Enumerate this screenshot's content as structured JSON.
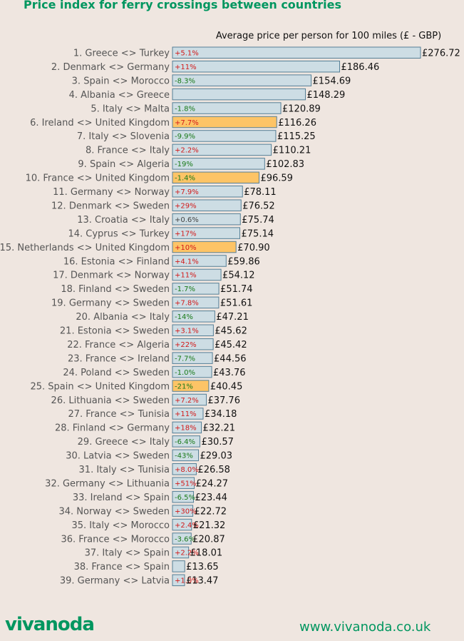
{
  "title": "Price index for ferry crossings between countries",
  "footer": {
    "logo": "vivanoda",
    "url": "www.vivanoda.co.uk"
  },
  "colors": {
    "brand": "#00965f",
    "bar": "#cddde4",
    "bar_highlight": "#fdc466",
    "bar_border": "#557f96",
    "increase": "#d21a1a",
    "decrease": "#197a19",
    "neutral": "#444444"
  },
  "chart_data": {
    "type": "bar",
    "orientation": "horizontal",
    "subtitle": "Average price per person for 100 miles (£ - GBP)",
    "value_prefix": "£",
    "xlim": [
      0,
      276.72
    ],
    "categories": [
      "1. Greece <> Turkey",
      "2. Denmark <> Germany",
      "3. Spain <> Morocco",
      "4. Albania <> Greece",
      "5. Italy <> Malta",
      "6. Ireland <> United Kingdom",
      "7. Italy <> Slovenia",
      "8. France <> Italy",
      "9. Spain <> Algeria",
      "10. France <> United Kingdom",
      "11. Germany <> Norway",
      "12. Denmark <> Sweden",
      "13. Croatia <> Italy",
      "14. Cyprus <> Turkey",
      "15. Netherlands <> United Kingdom",
      "16. Estonia <> Finland",
      "17. Denmark <> Norway",
      "18. Finland <> Sweden",
      "19. Germany <> Sweden",
      "20. Albania <> Italy",
      "21. Estonia <> Sweden",
      "22. France <> Algeria",
      "23. France <> Ireland",
      "24. Poland <> Sweden",
      "25. Spain <> United Kingdom",
      "26. Lithuania <> Sweden",
      "27. France <> Tunisia",
      "28. Finland <> Germany",
      "29. Greece <> Italy",
      "30. Latvia <> Sweden",
      "31. Italy <> Tunisia",
      "32. Germany <> Lithuania",
      "33. Ireland <> Spain",
      "34. Norway <> Sweden",
      "35. Italy <> Morocco",
      "36. France <> Morocco",
      "37. Italy <> Spain",
      "38. France <> Spain",
      "39. Germany <> Latvia"
    ],
    "values": [
      276.72,
      186.46,
      154.69,
      148.29,
      120.89,
      116.26,
      115.25,
      110.21,
      102.83,
      96.59,
      78.11,
      76.52,
      75.74,
      75.14,
      70.9,
      59.86,
      54.12,
      51.74,
      51.61,
      47.21,
      45.62,
      45.42,
      44.56,
      43.76,
      40.45,
      37.76,
      34.18,
      32.21,
      30.57,
      29.03,
      26.58,
      24.27,
      23.44,
      22.72,
      21.32,
      20.87,
      18.01,
      13.65,
      13.47
    ],
    "value_labels": [
      "£276.72",
      "£186.46",
      "£154.69",
      "£148.29",
      "£120.89",
      "£116.26",
      "£115.25",
      "£110.21",
      "£102.83",
      "£96.59",
      "£78.11",
      "£76.52",
      "£75.74",
      "£75.14",
      "£70.90",
      "£59.86",
      "£54.12",
      "£51.74",
      "£51.61",
      "£47.21",
      "£45.62",
      "£45.42",
      "£44.56",
      "£43.76",
      "£40.45",
      "£37.76",
      "£34.18",
      "£32.21",
      "£30.57",
      "£29.03",
      "£26.58",
      "£24.27",
      "£23.44",
      "£22.72",
      "£21.32",
      "£20.87",
      "£18.01",
      "£13.65",
      "£13.47"
    ],
    "changes": [
      "+5.1%",
      "+11%",
      "-8.3%",
      "",
      "-1.8%",
      "+7.7%",
      "-9.9%",
      "+2.2%",
      "-19%",
      "-1.4%",
      "+7.9%",
      "+29%",
      "+0.6%",
      "+17%",
      "+10%",
      "+4.1%",
      "+11%",
      "-1.7%",
      "+7.8%",
      "-14%",
      "+3.1%",
      "+22%",
      "-7.7%",
      "-1.0%",
      "-21%",
      "+7.2%",
      "+11%",
      "+18%",
      "-6.4%",
      "-43%",
      "+8.0%",
      "+51%",
      "-6.5%",
      "+30%",
      "+2.4%",
      "-3.6%",
      "+2.2%",
      "",
      "+1.0%"
    ],
    "highlighted": [
      "6. Ireland <> United Kingdom",
      "10. France <> United Kingdom",
      "15. Netherlands <> United Kingdom",
      "25. Spain <> United Kingdom"
    ],
    "grid": false,
    "legend": "none"
  }
}
